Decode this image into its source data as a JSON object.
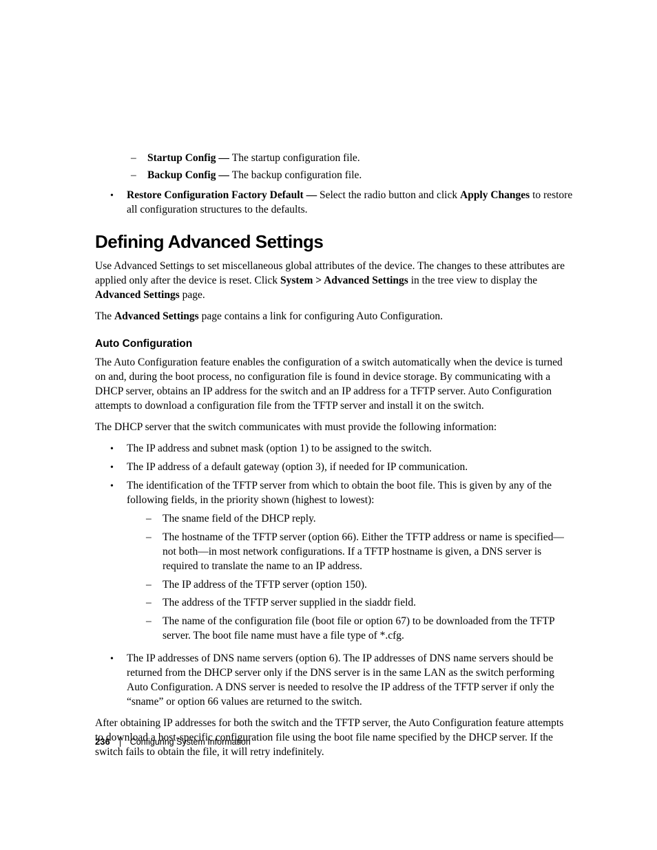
{
  "top_sub_bullets": [
    {
      "bold": "Startup Config — ",
      "rest": "The startup configuration file."
    },
    {
      "bold": "Backup Config — ",
      "rest": "The backup configuration file."
    }
  ],
  "top_main_bullet": {
    "bold1": "Restore Configuration Factory Default — ",
    "mid": "Select the radio button and click ",
    "bold2": "Apply Changes",
    "rest": " to restore all configuration structures to the defaults."
  },
  "section_title": "Defining Advanced Settings",
  "intro_para": {
    "p1": "Use Advanced Settings to set miscellaneous global attributes of the device. The changes to these attributes are applied only after the device is reset. Click ",
    "bold1": "System > Advanced Settings",
    "p2": " in the tree view to display the ",
    "bold2": "Advanced Settings",
    "p3": " page."
  },
  "second_para": {
    "p1": "The ",
    "bold1": "Advanced Settings",
    "p2": " page contains a link for configuring Auto Configuration."
  },
  "subsection_title": "Auto Configuration",
  "auto_para1": "The Auto Configuration feature enables the configuration of a switch automatically when the device is turned on and, during the boot process, no configuration file is found in device storage. By communicating with a DHCP server, obtains an IP address for the switch and an IP address for a TFTP server. Auto Configuration attempts to download a configuration file from the TFTP server and install it on the switch.",
  "auto_para2": "The DHCP server that the switch communicates with must provide the following information:",
  "dhcp_bullets": {
    "b1": "The IP address and subnet mask (option 1) to be assigned to the switch.",
    "b2": "The IP address of a default gateway (option 3), if needed for IP communication.",
    "b3": "The identification of the TFTP server from which to obtain the boot file. This is given by any of the following fields, in the priority shown (highest to lowest):",
    "b3_subs": {
      "s1": "The sname field of the DHCP reply.",
      "s2": "The hostname of the TFTP server (option 66). Either the TFTP address or name is specified—not both—in most network configurations. If a TFTP hostname is given, a DNS server is required to translate the name to an IP address.",
      "s3": "The IP address of the TFTP server (option 150).",
      "s4": "The address of the TFTP server supplied in the siaddr field.",
      "s5": "The name of the configuration file (boot file or option 67) to be downloaded from the TFTP server. The boot file name must have a file type of *.cfg."
    },
    "b4": "The IP addresses of DNS name servers (option 6). The IP addresses of DNS name servers should be returned from the DHCP server only if the DNS server is in the same LAN as the switch performing Auto Configuration. A DNS server is needed to resolve the IP address of the TFTP server if only the “sname” or option 66 values are returned to the switch."
  },
  "closing_para": "After obtaining IP addresses for both the switch and the TFTP server, the Auto Configuration feature attempts to download a host-specific configuration file using the boot file name specified by the DHCP server. If the switch fails to obtain the file, it will retry indefinitely.",
  "footer": {
    "page_number": "236",
    "chapter": "Configuring System Information"
  }
}
